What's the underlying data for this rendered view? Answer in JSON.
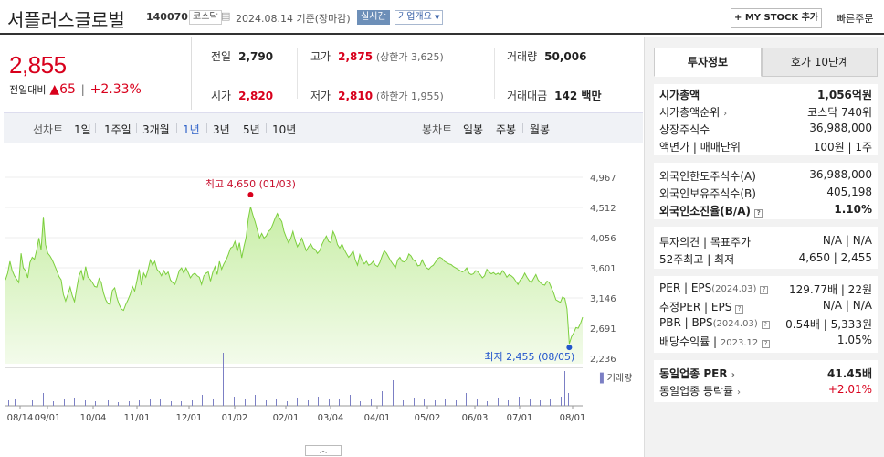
{
  "header": {
    "stock_name": "서플러스글로벌",
    "stock_code": "140070",
    "market": "코스닥",
    "date_basis": "2024.08.14 기준(장마감)",
    "realtime": "실시간",
    "company_info": "기업개요",
    "my_stock_button": "+ MY STOCK 추가",
    "quick_order": "빠른주문"
  },
  "price": {
    "current": "2,855",
    "diff_label": "전일대비",
    "diff_value": "▲65",
    "diff_pct": "+2.33%"
  },
  "stats": {
    "prev_label": "전일",
    "prev_value": "2,790",
    "high_label": "고가",
    "high_value": "2,875",
    "upper_limit": "(상한가 3,625)",
    "volume_label": "거래량",
    "volume_value": "50,006",
    "open_label": "시가",
    "open_value": "2,820",
    "low_label": "저가",
    "low_value": "2,810",
    "lower_limit": "(하한가 1,955)",
    "amount_label": "거래대금",
    "amount_value": "142 백만"
  },
  "line_chart_tabs": {
    "label": "선차트",
    "items": [
      "1일",
      "1주일",
      "3개월",
      "1년",
      "3년",
      "5년",
      "10년"
    ],
    "selected": "1년"
  },
  "candle_chart_tabs": {
    "label": "봉차트",
    "items": [
      "일봉",
      "주봉",
      "월봉"
    ]
  },
  "chart_data": {
    "type": "area",
    "y_ticks": [
      "4,967",
      "4,512",
      "4,056",
      "3,601",
      "3,146",
      "2,691",
      "2,236"
    ],
    "ylim": [
      2236,
      4967
    ],
    "x_ticks": [
      "08/14",
      "09/01",
      "10/04",
      "11/01",
      "12/01",
      "01/02",
      "02/01",
      "03/04",
      "04/01",
      "05/02",
      "06/03",
      "07/01",
      "08/01"
    ],
    "high_annotation": "최고 4,650 (01/03)",
    "low_annotation": "최저 2,455 (08/05)",
    "volume_legend": "거래량",
    "colors": {
      "line": "#7ccf3d",
      "fill_top": "#c8eea6",
      "fill_bottom": "#f3fbeb",
      "volume": "#7b7fc4",
      "high_dot": "#d8001c",
      "low_dot": "#2255cc"
    },
    "values": [
      3420,
      3520,
      3700,
      3560,
      3480,
      3430,
      3380,
      3820,
      3600,
      3560,
      3450,
      3680,
      3760,
      3730,
      3870,
      4050,
      3870,
      4370,
      3950,
      3820,
      3780,
      3720,
      3640,
      3560,
      3470,
      3420,
      3200,
      3100,
      3200,
      3310,
      3180,
      3090,
      3300,
      3480,
      3560,
      3420,
      3620,
      3460,
      3430,
      3380,
      3320,
      3310,
      3440,
      3380,
      3220,
      3120,
      3060,
      3050,
      3260,
      3300,
      3150,
      3050,
      2980,
      2960,
      3050,
      3120,
      3200,
      3320,
      3250,
      3410,
      3580,
      3340,
      3520,
      3460,
      3580,
      3720,
      3640,
      3700,
      3580,
      3540,
      3480,
      3560,
      3500,
      3540,
      3420,
      3380,
      3350,
      3450,
      3560,
      3600,
      3520,
      3600,
      3530,
      3450,
      3500,
      3520,
      3480,
      3460,
      3350,
      3480,
      3520,
      3540,
      3400,
      3530,
      3620,
      3500,
      3700,
      3580,
      3660,
      3720,
      3800,
      3900,
      3920,
      4000,
      3850,
      3980,
      3750,
      3920,
      4060,
      4350,
      4520,
      4400,
      4300,
      4180,
      4050,
      4120,
      4050,
      4080,
      4150,
      4180,
      4260,
      4350,
      4420,
      4350,
      4300,
      4150,
      4060,
      3980,
      4040,
      4150,
      4020,
      3920,
      3980,
      4050,
      3950,
      3860,
      3920,
      3960,
      3900,
      3880,
      3820,
      3860,
      3950,
      4020,
      4080,
      4000,
      3980,
      4150,
      4080,
      3950,
      3900,
      3960,
      3880,
      3820,
      3760,
      3800,
      3860,
      3720,
      3640,
      3800,
      3720,
      3660,
      3700,
      3640,
      3660,
      3700,
      3640,
      3620,
      3680,
      3780,
      3860,
      3820,
      3760,
      3700,
      3650,
      3600,
      3720,
      3760,
      3700,
      3690,
      3720,
      3810,
      3780,
      3720,
      3700,
      3630,
      3640,
      3720,
      3650,
      3600,
      3580,
      3620,
      3640,
      3690,
      3740,
      3760,
      3740,
      3700,
      3680,
      3660,
      3650,
      3620,
      3600,
      3580,
      3560,
      3540,
      3560,
      3600,
      3520,
      3500,
      3510,
      3560,
      3540,
      3500,
      3450,
      3480,
      3580,
      3540,
      3510,
      3530,
      3500,
      3520,
      3490,
      3560,
      3520,
      3460,
      3500,
      3480,
      3450,
      3400,
      3350,
      3420,
      3450,
      3520,
      3460,
      3410,
      3380,
      3440,
      3500,
      3420,
      3380,
      3350,
      3340,
      3400,
      3380,
      3300,
      3220,
      3120,
      3100,
      3080,
      3160,
      3140,
      2980,
      2455,
      2560,
      2620,
      2700,
      2690,
      2760,
      2855
    ],
    "volume_bars": [
      [
        9,
        6
      ],
      [
        16,
        8
      ],
      [
        28,
        10
      ],
      [
        35,
        6
      ],
      [
        47,
        14
      ],
      [
        58,
        5
      ],
      [
        70,
        7
      ],
      [
        81,
        9
      ],
      [
        93,
        6
      ],
      [
        104,
        5
      ],
      [
        118,
        6
      ],
      [
        129,
        4
      ],
      [
        141,
        5
      ],
      [
        152,
        6
      ],
      [
        164,
        8
      ],
      [
        175,
        7
      ],
      [
        187,
        5
      ],
      [
        198,
        5
      ],
      [
        210,
        6
      ],
      [
        221,
        12
      ],
      [
        233,
        8
      ],
      [
        244,
        58
      ],
      [
        247,
        30
      ],
      [
        256,
        10
      ],
      [
        268,
        8
      ],
      [
        279,
        12
      ],
      [
        291,
        6
      ],
      [
        302,
        8
      ],
      [
        314,
        5
      ],
      [
        325,
        9
      ],
      [
        337,
        6
      ],
      [
        348,
        10
      ],
      [
        360,
        7
      ],
      [
        371,
        8
      ],
      [
        383,
        12
      ],
      [
        394,
        5
      ],
      [
        406,
        7
      ],
      [
        418,
        16
      ],
      [
        430,
        28
      ],
      [
        441,
        6
      ],
      [
        453,
        9
      ],
      [
        464,
        7
      ],
      [
        476,
        6
      ],
      [
        487,
        8
      ],
      [
        499,
        6
      ],
      [
        510,
        14
      ],
      [
        522,
        7
      ],
      [
        533,
        5
      ],
      [
        545,
        9
      ],
      [
        556,
        6
      ],
      [
        568,
        10
      ],
      [
        580,
        7
      ],
      [
        591,
        6
      ],
      [
        602,
        8
      ],
      [
        614,
        10
      ],
      [
        618,
        38
      ],
      [
        622,
        14
      ],
      [
        628,
        9
      ]
    ]
  },
  "info_panel": {
    "tab_info": "투자정보",
    "tab_hoga": "호가 10단계",
    "market_cap_label": "시가총액",
    "market_cap_value": "1,056억원",
    "cap_rank_label": "시가총액순위",
    "cap_rank_value": "코스닥 740위",
    "shares_label": "상장주식수",
    "shares_value": "36,988,000",
    "par_label": "액면가 | 매매단위",
    "par_value": "100원 | 1주",
    "foreign_limit_label": "외국인한도주식수(A)",
    "foreign_limit_value": "36,988,000",
    "foreign_hold_label": "외국인보유주식수(B)",
    "foreign_hold_value": "405,198",
    "foreign_ratio_label": "외국인소진율(B/A)",
    "foreign_ratio_value": "1.10%",
    "opinion_label": "투자의견 | 목표주가",
    "opinion_value": "N/A | N/A",
    "week52_label": "52주최고 | 최저",
    "week52_value": "4,650 | 2,455",
    "per_label": "PER | EPS",
    "per_period": "(2024.03)",
    "per_value": "129.77배 | 22원",
    "est_per_label": "추정PER | EPS",
    "est_per_value": "N/A | N/A",
    "pbr_label": "PBR | BPS",
    "pbr_period": "(2024.03)",
    "pbr_value": "0.54배 | 5,333원",
    "div_label": "배당수익률 | ",
    "div_period": "2023.12",
    "div_value": "1.05%",
    "ind_per_label": "동일업종 PER",
    "ind_per_value": "41.45배",
    "ind_rate_label": "동일업종 등락률",
    "ind_rate_value": "+2.01%"
  }
}
